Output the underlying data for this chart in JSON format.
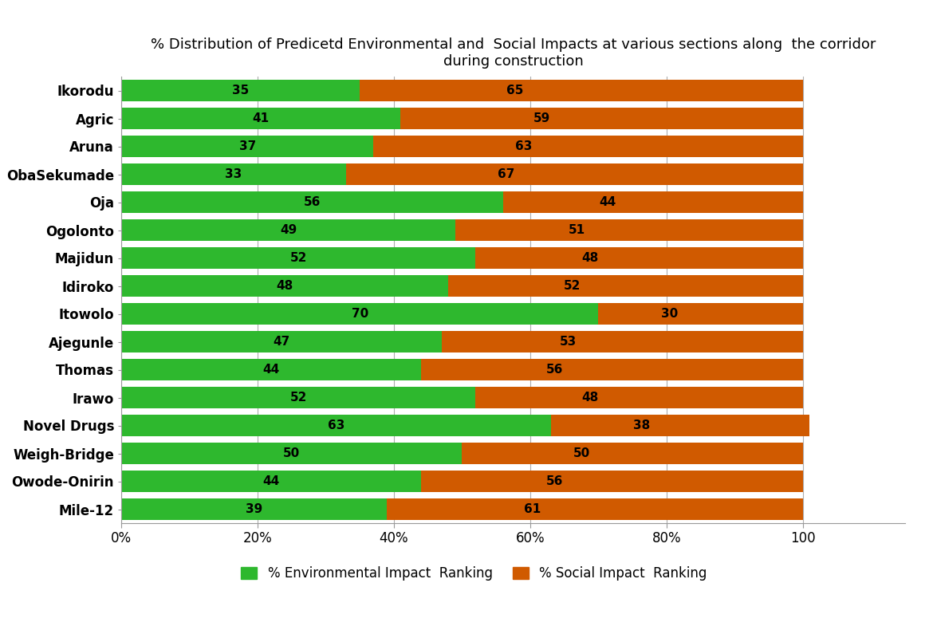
{
  "title_line1": "% Distribution of Predicetd Environmental and  Social Impacts at various sections along  the corridor",
  "title_line2": "during construction",
  "categories": [
    "Ikorodu",
    "Agric",
    "Aruna",
    "ObaSekumade",
    "Oja",
    "Ogolonto",
    "Majidun",
    "Idiroko",
    "Itowolo",
    "Ajegunle",
    "Thomas",
    "Irawo",
    "Novel Drugs",
    "Weigh-Bridge",
    "Owode-Onirin",
    "Mile-12"
  ],
  "environmental": [
    35,
    41,
    37,
    33,
    56,
    49,
    52,
    48,
    70,
    47,
    44,
    52,
    63,
    50,
    44,
    39
  ],
  "social": [
    65,
    59,
    63,
    67,
    44,
    51,
    48,
    52,
    30,
    53,
    56,
    48,
    38,
    50,
    56,
    61
  ],
  "env_color": "#2EB82E",
  "soc_color": "#D05A00",
  "bg_color": "#FFFFFF",
  "title_fontsize": 13,
  "label_fontsize": 12,
  "tick_fontsize": 12,
  "bar_value_fontsize": 11,
  "legend_fontsize": 12,
  "xlabel_ticks": [
    "0%",
    "20%",
    "40%",
    "60%",
    "80%",
    "100"
  ],
  "xlabel_vals": [
    0,
    20,
    40,
    60,
    80,
    100
  ],
  "legend_env": "% Environmental Impact  Ranking",
  "legend_soc": "% Social Impact  Ranking",
  "xlim_max": 115
}
